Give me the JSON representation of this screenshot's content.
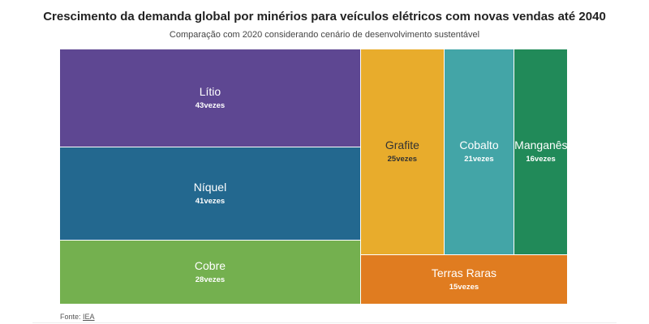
{
  "title": "Crescimento da demanda global por minérios para veículos elétricos com novas vendas até 2040",
  "subtitle": "Comparação com 2020 considerando cenário de desenvolvimento sustentável",
  "source": {
    "prefix": "Fonte: ",
    "link_text": "IEA"
  },
  "chart_data": {
    "type": "treemap",
    "unit_suffix": "vezes",
    "items": [
      {
        "name": "Lítio",
        "value": 43,
        "color": "#5e4792"
      },
      {
        "name": "Níquel",
        "value": 41,
        "color": "#23688f"
      },
      {
        "name": "Cobre",
        "value": 28,
        "color": "#74b04f"
      },
      {
        "name": "Grafite",
        "value": 25,
        "color": "#e8ac2c"
      },
      {
        "name": "Cobalto",
        "value": 21,
        "color": "#43a5a7"
      },
      {
        "name": "Manganês",
        "value": 16,
        "color": "#218a59"
      },
      {
        "name": "Terras Raras",
        "value": 15,
        "color": "#e07c20"
      }
    ]
  }
}
